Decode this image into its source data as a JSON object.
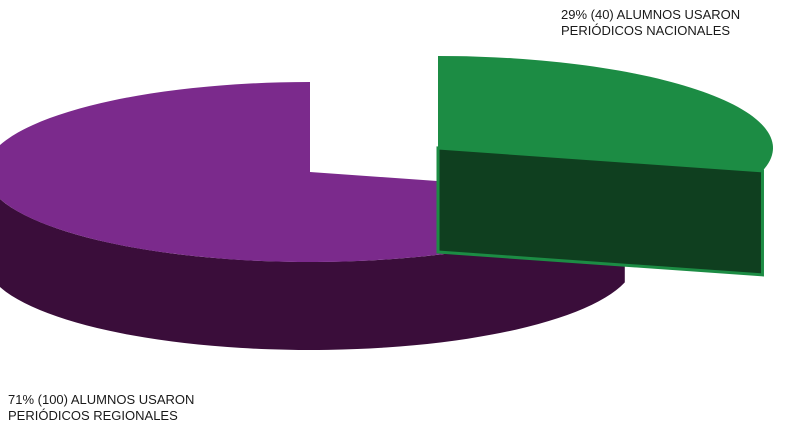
{
  "chart_data": {
    "type": "pie",
    "style": "3d-exploded",
    "slices": [
      {
        "percent": 71,
        "count": 100,
        "label_lines": [
          "71% (100) ALUMNOS USARON",
          "PERIÓDICOS REGIONALES"
        ],
        "color_top": "#7b2a8c",
        "color_side": "#3a0d3a"
      },
      {
        "percent": 29,
        "count": 40,
        "label_lines": [
          "29% (40) ALUMNOS USARON",
          "PERIÓDICOS NACIONALES"
        ],
        "color_top": "#1c8c44",
        "color_side": "#0f3f1f"
      }
    ],
    "legend": "none"
  }
}
